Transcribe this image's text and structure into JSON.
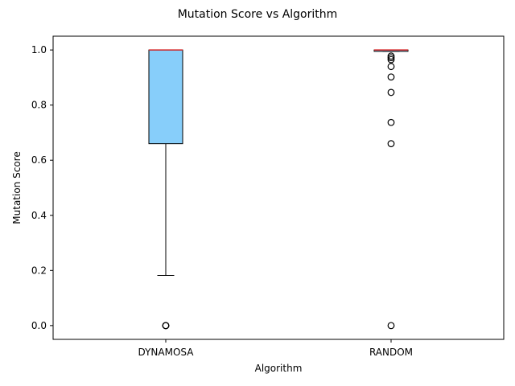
{
  "chart_data": {
    "type": "box",
    "title": "Mutation Score vs Algorithm",
    "xlabel": "Algorithm",
    "ylabel": "Mutation Score",
    "ylim": [
      -0.05,
      1.05
    ],
    "yticks": [
      0.0,
      0.2,
      0.4,
      0.6,
      0.8,
      1.0
    ],
    "ytick_labels": [
      "0.0",
      "0.2",
      "0.4",
      "0.6",
      "0.8",
      "1.0"
    ],
    "categories": [
      "DYNAMOSA",
      "RANDOM"
    ],
    "grid": false,
    "boxes": [
      {
        "name": "DYNAMOSA",
        "whisker_low": 0.182,
        "q1": 0.66,
        "median": 1.0,
        "q3": 1.0,
        "whisker_high": 1.0,
        "outliers": [
          0.0,
          0.0,
          0.0
        ]
      },
      {
        "name": "RANDOM",
        "whisker_low": 0.995,
        "q1": 0.995,
        "median": 1.0,
        "q3": 1.0,
        "whisker_high": 1.0,
        "outliers": [
          0.0,
          0.66,
          0.737,
          0.846,
          0.902,
          0.94,
          0.965,
          0.972,
          0.978
        ]
      }
    ],
    "colors": {
      "box_fill": "#87CEFA",
      "box_edge": "#000000",
      "median": "#d62728",
      "outlier_edge": "#000000"
    }
  }
}
